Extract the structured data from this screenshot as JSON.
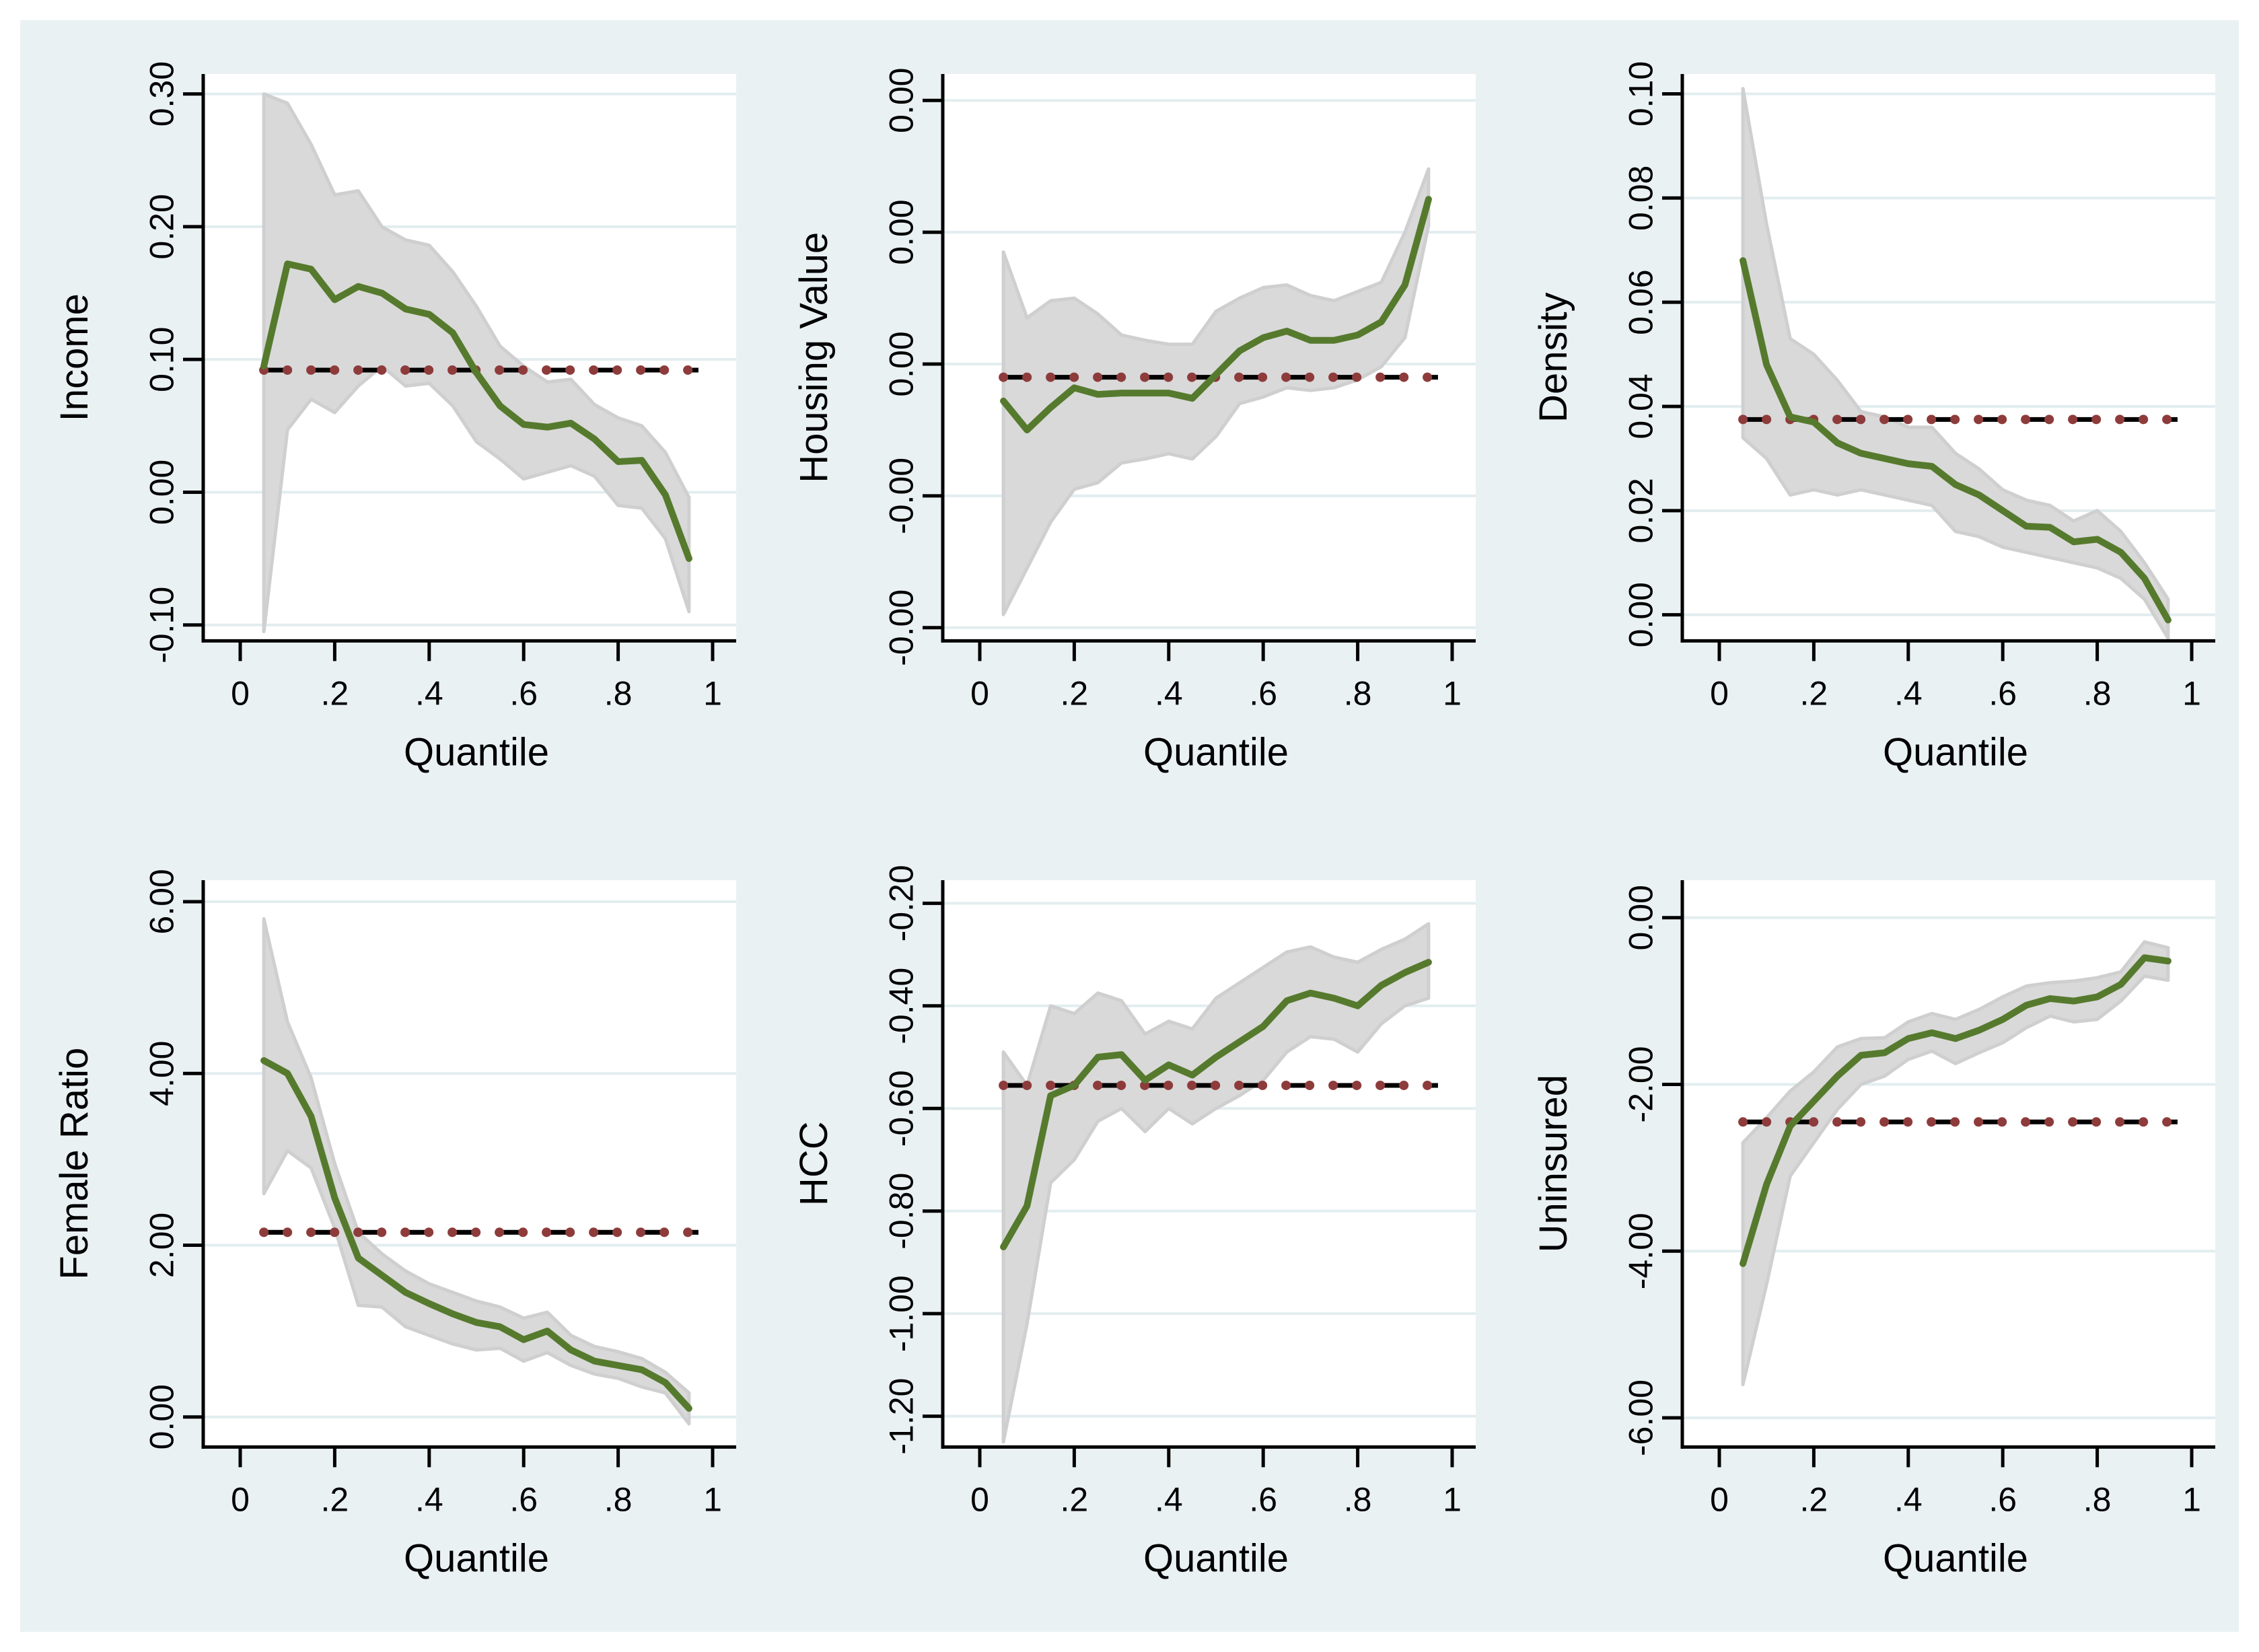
{
  "figure": {
    "colors": {
      "background": "#eaf1f3",
      "outer_margin": "#ffffff",
      "plot_background": "#ffffff",
      "gridline": "#e2edf0",
      "estimate_line": "#567a2d",
      "band_fill": "#d9d9d9",
      "band_edge": "#cfcfcf",
      "reference_dash": "#000000",
      "reference_dot": "#8e3b3c",
      "axis": "#000000",
      "text": "#000000"
    }
  },
  "chart_data": [
    {
      "type": "line",
      "key": "income",
      "ylabel": "Income",
      "xlabel": "Quantile",
      "x": [
        0.05,
        0.1,
        0.15,
        0.2,
        0.25,
        0.3,
        0.35,
        0.4,
        0.45,
        0.5,
        0.55,
        0.6,
        0.65,
        0.7,
        0.75,
        0.8,
        0.85,
        0.9,
        0.95
      ],
      "series": [
        {
          "name": "estimate",
          "values": [
            0.095,
            0.172,
            0.168,
            0.145,
            0.155,
            0.15,
            0.138,
            0.134,
            0.12,
            0.09,
            0.065,
            0.051,
            0.049,
            0.052,
            0.04,
            0.023,
            0.024,
            -0.002,
            -0.05
          ]
        },
        {
          "name": "ci_upper",
          "values": [
            0.3,
            0.293,
            0.262,
            0.224,
            0.227,
            0.2,
            0.19,
            0.186,
            0.166,
            0.14,
            0.11,
            0.095,
            0.083,
            0.085,
            0.066,
            0.056,
            0.05,
            0.03,
            -0.004
          ]
        },
        {
          "name": "ci_lower",
          "values": [
            -0.105,
            0.047,
            0.07,
            0.06,
            0.08,
            0.095,
            0.08,
            0.082,
            0.065,
            0.038,
            0.025,
            0.01,
            0.015,
            0.02,
            0.012,
            -0.01,
            -0.012,
            -0.035,
            -0.09
          ]
        }
      ],
      "reference_line": 0.092,
      "ylim": [
        -0.112,
        0.315
      ],
      "yticks": {
        "values": [
          -0.1,
          0.0,
          0.1,
          0.2,
          0.3
        ],
        "labels": [
          "-0.10",
          "0.00",
          "0.10",
          "0.20",
          "0.30"
        ]
      },
      "xticks": {
        "values": [
          0,
          0.2,
          0.4,
          0.6,
          0.8,
          1
        ],
        "labels": [
          "0",
          ".2",
          ".4",
          ".6",
          ".8",
          "1"
        ]
      },
      "grid": "horizontal",
      "legend": "none"
    },
    {
      "type": "line",
      "key": "housing-value",
      "ylabel": "Housing Value",
      "xlabel": "Quantile",
      "x": [
        0.05,
        0.1,
        0.15,
        0.2,
        0.25,
        0.3,
        0.35,
        0.4,
        0.45,
        0.5,
        0.55,
        0.6,
        0.65,
        0.7,
        0.75,
        0.8,
        0.85,
        0.9,
        0.95
      ],
      "series": [
        {
          "name": "estimate",
          "values": [
            -0.00028,
            -0.0005,
            -0.00033,
            -0.00018,
            -0.00023,
            -0.00022,
            -0.00022,
            -0.00022,
            -0.00026,
            -8e-05,
            0.0001,
            0.0002,
            0.00025,
            0.00018,
            0.00018,
            0.00022,
            0.00032,
            0.0006,
            0.00125
          ]
        },
        {
          "name": "ci_upper",
          "values": [
            0.00085,
            0.00035,
            0.00048,
            0.0005,
            0.00038,
            0.00022,
            0.00018,
            0.00015,
            0.00015,
            0.0004,
            0.0005,
            0.00058,
            0.0006,
            0.00052,
            0.00048,
            0.00055,
            0.00062,
            0.001,
            0.00148
          ]
        },
        {
          "name": "ci_lower",
          "values": [
            -0.0019,
            -0.00155,
            -0.0012,
            -0.00095,
            -0.0009,
            -0.00075,
            -0.00072,
            -0.00068,
            -0.00072,
            -0.00055,
            -0.0003,
            -0.00025,
            -0.00018,
            -0.0002,
            -0.00018,
            -0.00012,
            -2e-05,
            0.0002,
            0.00105
          ]
        }
      ],
      "reference_line": -0.0001,
      "ylim": [
        -0.0021,
        0.0022
      ],
      "yticks": {
        "values": [
          -0.002,
          -0.001,
          0.0,
          0.001,
          0.002
        ],
        "labels": [
          "-0.00",
          "-0.00",
          "0.00",
          "0.00",
          "0.00"
        ]
      },
      "xticks": {
        "values": [
          0,
          0.2,
          0.4,
          0.6,
          0.8,
          1
        ],
        "labels": [
          "0",
          ".2",
          ".4",
          ".6",
          ".8",
          "1"
        ]
      },
      "grid": "horizontal",
      "legend": "none"
    },
    {
      "type": "line",
      "key": "density",
      "ylabel": "Density",
      "xlabel": "Quantile",
      "x": [
        0.05,
        0.1,
        0.15,
        0.2,
        0.25,
        0.3,
        0.35,
        0.4,
        0.45,
        0.5,
        0.55,
        0.6,
        0.65,
        0.7,
        0.75,
        0.8,
        0.85,
        0.9,
        0.95
      ],
      "series": [
        {
          "name": "estimate",
          "values": [
            0.068,
            0.048,
            0.038,
            0.037,
            0.033,
            0.031,
            0.03,
            0.029,
            0.0285,
            0.025,
            0.023,
            0.02,
            0.017,
            0.0168,
            0.014,
            0.0145,
            0.012,
            0.007,
            -0.001
          ]
        },
        {
          "name": "ci_upper",
          "values": [
            0.101,
            0.075,
            0.053,
            0.05,
            0.045,
            0.039,
            0.038,
            0.036,
            0.036,
            0.031,
            0.028,
            0.024,
            0.022,
            0.021,
            0.018,
            0.02,
            0.016,
            0.01,
            0.003
          ]
        },
        {
          "name": "ci_lower",
          "values": [
            0.034,
            0.03,
            0.023,
            0.024,
            0.023,
            0.024,
            0.023,
            0.022,
            0.021,
            0.016,
            0.015,
            0.013,
            0.012,
            0.011,
            0.01,
            0.009,
            0.007,
            0.003,
            -0.0045
          ]
        }
      ],
      "reference_line": 0.0375,
      "ylim": [
        -0.005,
        0.1038
      ],
      "yticks": {
        "values": [
          0.0,
          0.02,
          0.04,
          0.06,
          0.08,
          0.1
        ],
        "labels": [
          "0.00",
          "0.02",
          "0.04",
          "0.06",
          "0.08",
          "0.10"
        ]
      },
      "xticks": {
        "values": [
          0,
          0.2,
          0.4,
          0.6,
          0.8,
          1
        ],
        "labels": [
          "0",
          ".2",
          ".4",
          ".6",
          ".8",
          "1"
        ]
      },
      "grid": "horizontal",
      "legend": "none"
    },
    {
      "type": "line",
      "key": "female-ratio",
      "ylabel": "Female Ratio",
      "xlabel": "Quantile",
      "x": [
        0.05,
        0.1,
        0.15,
        0.2,
        0.25,
        0.3,
        0.35,
        0.4,
        0.45,
        0.5,
        0.55,
        0.6,
        0.65,
        0.7,
        0.75,
        0.8,
        0.85,
        0.9,
        0.95
      ],
      "series": [
        {
          "name": "estimate",
          "values": [
            4.15,
            4.0,
            3.5,
            2.55,
            1.85,
            1.65,
            1.45,
            1.32,
            1.2,
            1.1,
            1.05,
            0.9,
            1.0,
            0.78,
            0.65,
            0.6,
            0.55,
            0.4,
            0.1
          ]
        },
        {
          "name": "ci_upper",
          "values": [
            5.8,
            4.6,
            3.95,
            2.95,
            2.15,
            1.9,
            1.7,
            1.55,
            1.45,
            1.35,
            1.28,
            1.15,
            1.22,
            0.95,
            0.82,
            0.76,
            0.68,
            0.52,
            0.28
          ]
        },
        {
          "name": "ci_lower",
          "values": [
            2.6,
            3.1,
            2.9,
            2.2,
            1.3,
            1.28,
            1.05,
            0.95,
            0.85,
            0.78,
            0.8,
            0.65,
            0.75,
            0.6,
            0.5,
            0.45,
            0.35,
            0.28,
            -0.08
          ]
        }
      ],
      "reference_line": 2.15,
      "ylim": [
        -0.35,
        6.25
      ],
      "yticks": {
        "values": [
          0,
          2,
          4,
          6
        ],
        "labels": [
          "0.00",
          "2.00",
          "4.00",
          "6.00"
        ]
      },
      "xticks": {
        "values": [
          0,
          0.2,
          0.4,
          0.6,
          0.8,
          1
        ],
        "labels": [
          "0",
          ".2",
          ".4",
          ".6",
          ".8",
          "1"
        ]
      },
      "grid": "horizontal",
      "legend": "none"
    },
    {
      "type": "line",
      "key": "hcc",
      "ylabel": "HCC",
      "xlabel": "Quantile",
      "x": [
        0.05,
        0.1,
        0.15,
        0.2,
        0.25,
        0.3,
        0.35,
        0.4,
        0.45,
        0.5,
        0.55,
        0.6,
        0.65,
        0.7,
        0.75,
        0.8,
        0.85,
        0.9,
        0.95
      ],
      "series": [
        {
          "name": "estimate",
          "values": [
            -0.87,
            -0.79,
            -0.575,
            -0.555,
            -0.5,
            -0.495,
            -0.545,
            -0.515,
            -0.535,
            -0.5,
            -0.47,
            -0.44,
            -0.39,
            -0.375,
            -0.385,
            -0.4,
            -0.36,
            -0.335,
            -0.315
          ]
        },
        {
          "name": "ci_upper",
          "values": [
            -0.49,
            -0.555,
            -0.4,
            -0.415,
            -0.375,
            -0.39,
            -0.455,
            -0.43,
            -0.445,
            -0.385,
            -0.355,
            -0.325,
            -0.295,
            -0.285,
            -0.305,
            -0.315,
            -0.29,
            -0.27,
            -0.24
          ]
        },
        {
          "name": "ci_lower",
          "values": [
            -1.25,
            -1.02,
            -0.745,
            -0.7,
            -0.625,
            -0.6,
            -0.645,
            -0.6,
            -0.63,
            -0.6,
            -0.575,
            -0.545,
            -0.49,
            -0.46,
            -0.465,
            -0.49,
            -0.435,
            -0.4,
            -0.385
          ]
        }
      ],
      "reference_line": -0.555,
      "ylim": [
        -1.26,
        -0.155
      ],
      "yticks": {
        "values": [
          -1.2,
          -1.0,
          -0.8,
          -0.6,
          -0.4,
          -0.2
        ],
        "labels": [
          "-1.20",
          "-1.00",
          "-0.80",
          "-0.60",
          "-0.40",
          "-0.20"
        ]
      },
      "xticks": {
        "values": [
          0,
          0.2,
          0.4,
          0.6,
          0.8,
          1
        ],
        "labels": [
          "0",
          ".2",
          ".4",
          ".6",
          ".8",
          "1"
        ]
      },
      "grid": "horizontal",
      "legend": "none"
    },
    {
      "type": "line",
      "key": "uninsured",
      "ylabel": "Uninsured",
      "xlabel": "Quantile",
      "x": [
        0.05,
        0.1,
        0.15,
        0.2,
        0.25,
        0.3,
        0.35,
        0.4,
        0.45,
        0.5,
        0.55,
        0.6,
        0.65,
        0.7,
        0.75,
        0.8,
        0.85,
        0.9,
        0.95
      ],
      "series": [
        {
          "name": "estimate",
          "values": [
            -4.15,
            -3.2,
            -2.5,
            -2.2,
            -1.9,
            -1.65,
            -1.62,
            -1.45,
            -1.38,
            -1.45,
            -1.35,
            -1.22,
            -1.05,
            -0.97,
            -1.0,
            -0.95,
            -0.8,
            -0.48,
            -0.52
          ]
        },
        {
          "name": "ci_upper",
          "values": [
            -2.7,
            -2.4,
            -2.08,
            -1.85,
            -1.55,
            -1.45,
            -1.44,
            -1.25,
            -1.15,
            -1.22,
            -1.1,
            -0.95,
            -0.82,
            -0.78,
            -0.76,
            -0.72,
            -0.65,
            -0.29,
            -0.36
          ]
        },
        {
          "name": "ci_lower",
          "values": [
            -5.6,
            -4.4,
            -3.1,
            -2.7,
            -2.3,
            -2.0,
            -1.9,
            -1.7,
            -1.6,
            -1.75,
            -1.62,
            -1.5,
            -1.32,
            -1.18,
            -1.25,
            -1.22,
            -1.0,
            -0.7,
            -0.75
          ]
        }
      ],
      "reference_line": -2.45,
      "ylim": [
        -6.35,
        0.45
      ],
      "yticks": {
        "values": [
          -6,
          -4,
          -2,
          0
        ],
        "labels": [
          "-6.00",
          "-4.00",
          "-2.00",
          "0.00"
        ]
      },
      "xticks": {
        "values": [
          0,
          0.2,
          0.4,
          0.6,
          0.8,
          1
        ],
        "labels": [
          "0",
          ".2",
          ".4",
          ".6",
          ".8",
          "1"
        ]
      },
      "grid": "horizontal",
      "legend": "none"
    }
  ]
}
